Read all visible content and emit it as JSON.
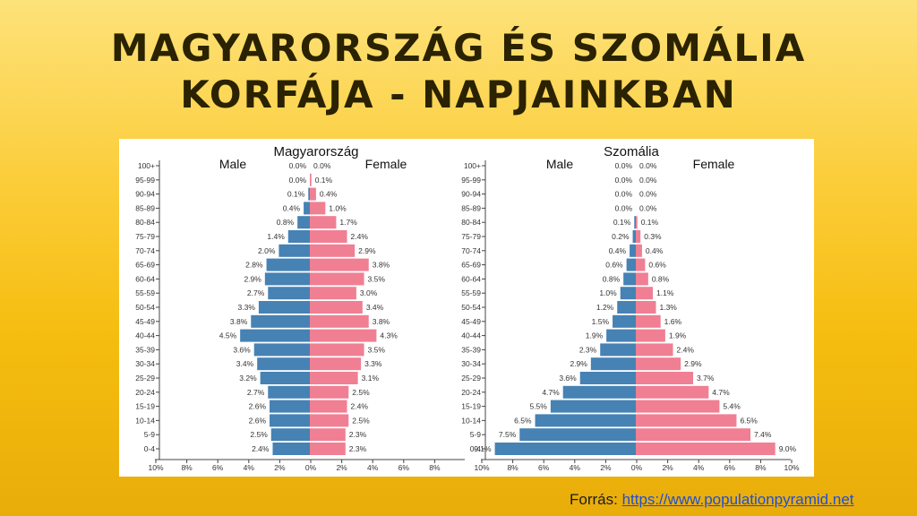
{
  "slide": {
    "title_line1": "MAGYARORSZÁG ÉS SZOMÁLIA",
    "title_line2": "KORFÁJA - NAPJAINKBAN",
    "source_label": "Forrás:",
    "source_link": "https://www.populationpyramid.net"
  },
  "colors": {
    "male": "#4682b4",
    "female": "#f07f93",
    "axis": "#444444"
  },
  "chart_data": [
    {
      "type": "bar",
      "orientation": "horizontal-population-pyramid",
      "title": "Magyarország",
      "male_label": "Male",
      "female_label": "Female",
      "categories": [
        "100+",
        "95-99",
        "90-94",
        "85-89",
        "80-84",
        "75-79",
        "70-74",
        "65-69",
        "60-64",
        "55-59",
        "50-54",
        "45-49",
        "40-44",
        "35-39",
        "30-34",
        "25-29",
        "20-24",
        "15-19",
        "10-14",
        "5-9",
        "0-4"
      ],
      "series": [
        {
          "name": "Male",
          "values": [
            0.0,
            0.0,
            0.1,
            0.4,
            0.8,
            1.4,
            2.0,
            2.8,
            2.9,
            2.7,
            3.3,
            3.8,
            4.5,
            3.6,
            3.4,
            3.2,
            2.7,
            2.6,
            2.6,
            2.5,
            2.4
          ],
          "labels": [
            "0.0%",
            "0.0%",
            "0.1%",
            "0.4%",
            "0.8%",
            "1.4%",
            "2.0%",
            "2.8%",
            "2.9%",
            "2.7%",
            "3.3%",
            "3.8%",
            "4.5%",
            "3.6%",
            "3.4%",
            "3.2%",
            "2.7%",
            "2.6%",
            "2.6%",
            "2.5%",
            "2.4%"
          ]
        },
        {
          "name": "Female",
          "values": [
            0.0,
            0.1,
            0.4,
            1.0,
            1.7,
            2.4,
            2.9,
            3.8,
            3.5,
            3.0,
            3.4,
            3.8,
            4.3,
            3.5,
            3.3,
            3.1,
            2.5,
            2.4,
            2.5,
            2.3,
            2.3
          ],
          "labels": [
            "0.0%",
            "0.1%",
            "0.4%",
            "1.0%",
            "1.7%",
            "2.4%",
            "2.9%",
            "3.8%",
            "3.5%",
            "3.0%",
            "3.4%",
            "3.8%",
            "4.3%",
            "3.5%",
            "3.3%",
            "3.1%",
            "2.5%",
            "2.4%",
            "2.5%",
            "2.3%",
            "2.3%"
          ]
        }
      ],
      "xlim": [
        0,
        10
      ],
      "xticks": [
        "10%",
        "8%",
        "6%",
        "4%",
        "2%",
        "0%",
        "2%",
        "4%",
        "6%",
        "8%"
      ]
    },
    {
      "type": "bar",
      "orientation": "horizontal-population-pyramid",
      "title": "Szomália",
      "male_label": "Male",
      "female_label": "Female",
      "categories": [
        "100+",
        "95-99",
        "90-94",
        "85-89",
        "80-84",
        "75-79",
        "70-74",
        "65-69",
        "60-64",
        "55-59",
        "50-54",
        "45-49",
        "40-44",
        "35-39",
        "30-34",
        "25-29",
        "20-24",
        "15-19",
        "10-14",
        "5-9",
        "0-4"
      ],
      "series": [
        {
          "name": "Male",
          "values": [
            0.0,
            0.0,
            0.0,
            0.0,
            0.1,
            0.2,
            0.4,
            0.6,
            0.8,
            1.0,
            1.2,
            1.5,
            1.9,
            2.3,
            2.9,
            3.6,
            4.7,
            5.5,
            6.5,
            7.5,
            9.1
          ],
          "labels": [
            "0.0%",
            "0.0%",
            "0.0%",
            "0.0%",
            "0.1%",
            "0.2%",
            "0.4%",
            "0.6%",
            "0.8%",
            "1.0%",
            "1.2%",
            "1.5%",
            "1.9%",
            "2.3%",
            "2.9%",
            "3.6%",
            "4.7%",
            "5.5%",
            "6.5%",
            "7.5%",
            "9.1%"
          ]
        },
        {
          "name": "Female",
          "values": [
            0.0,
            0.0,
            0.0,
            0.0,
            0.1,
            0.3,
            0.4,
            0.6,
            0.8,
            1.1,
            1.3,
            1.6,
            1.9,
            2.4,
            2.9,
            3.7,
            4.7,
            5.4,
            6.5,
            7.4,
            9.0
          ],
          "labels": [
            "0.0%",
            "0.0%",
            "0.0%",
            "0.0%",
            "0.1%",
            "0.3%",
            "0.4%",
            "0.6%",
            "0.8%",
            "1.1%",
            "1.3%",
            "1.6%",
            "1.9%",
            "2.4%",
            "2.9%",
            "3.7%",
            "4.7%",
            "5.4%",
            "6.5%",
            "7.4%",
            "9.0%"
          ]
        }
      ],
      "xlim": [
        0,
        10
      ],
      "xticks": [
        "10%",
        "8%",
        "6%",
        "4%",
        "2%",
        "0%",
        "2%",
        "4%",
        "6%",
        "8%",
        "10%"
      ]
    }
  ]
}
